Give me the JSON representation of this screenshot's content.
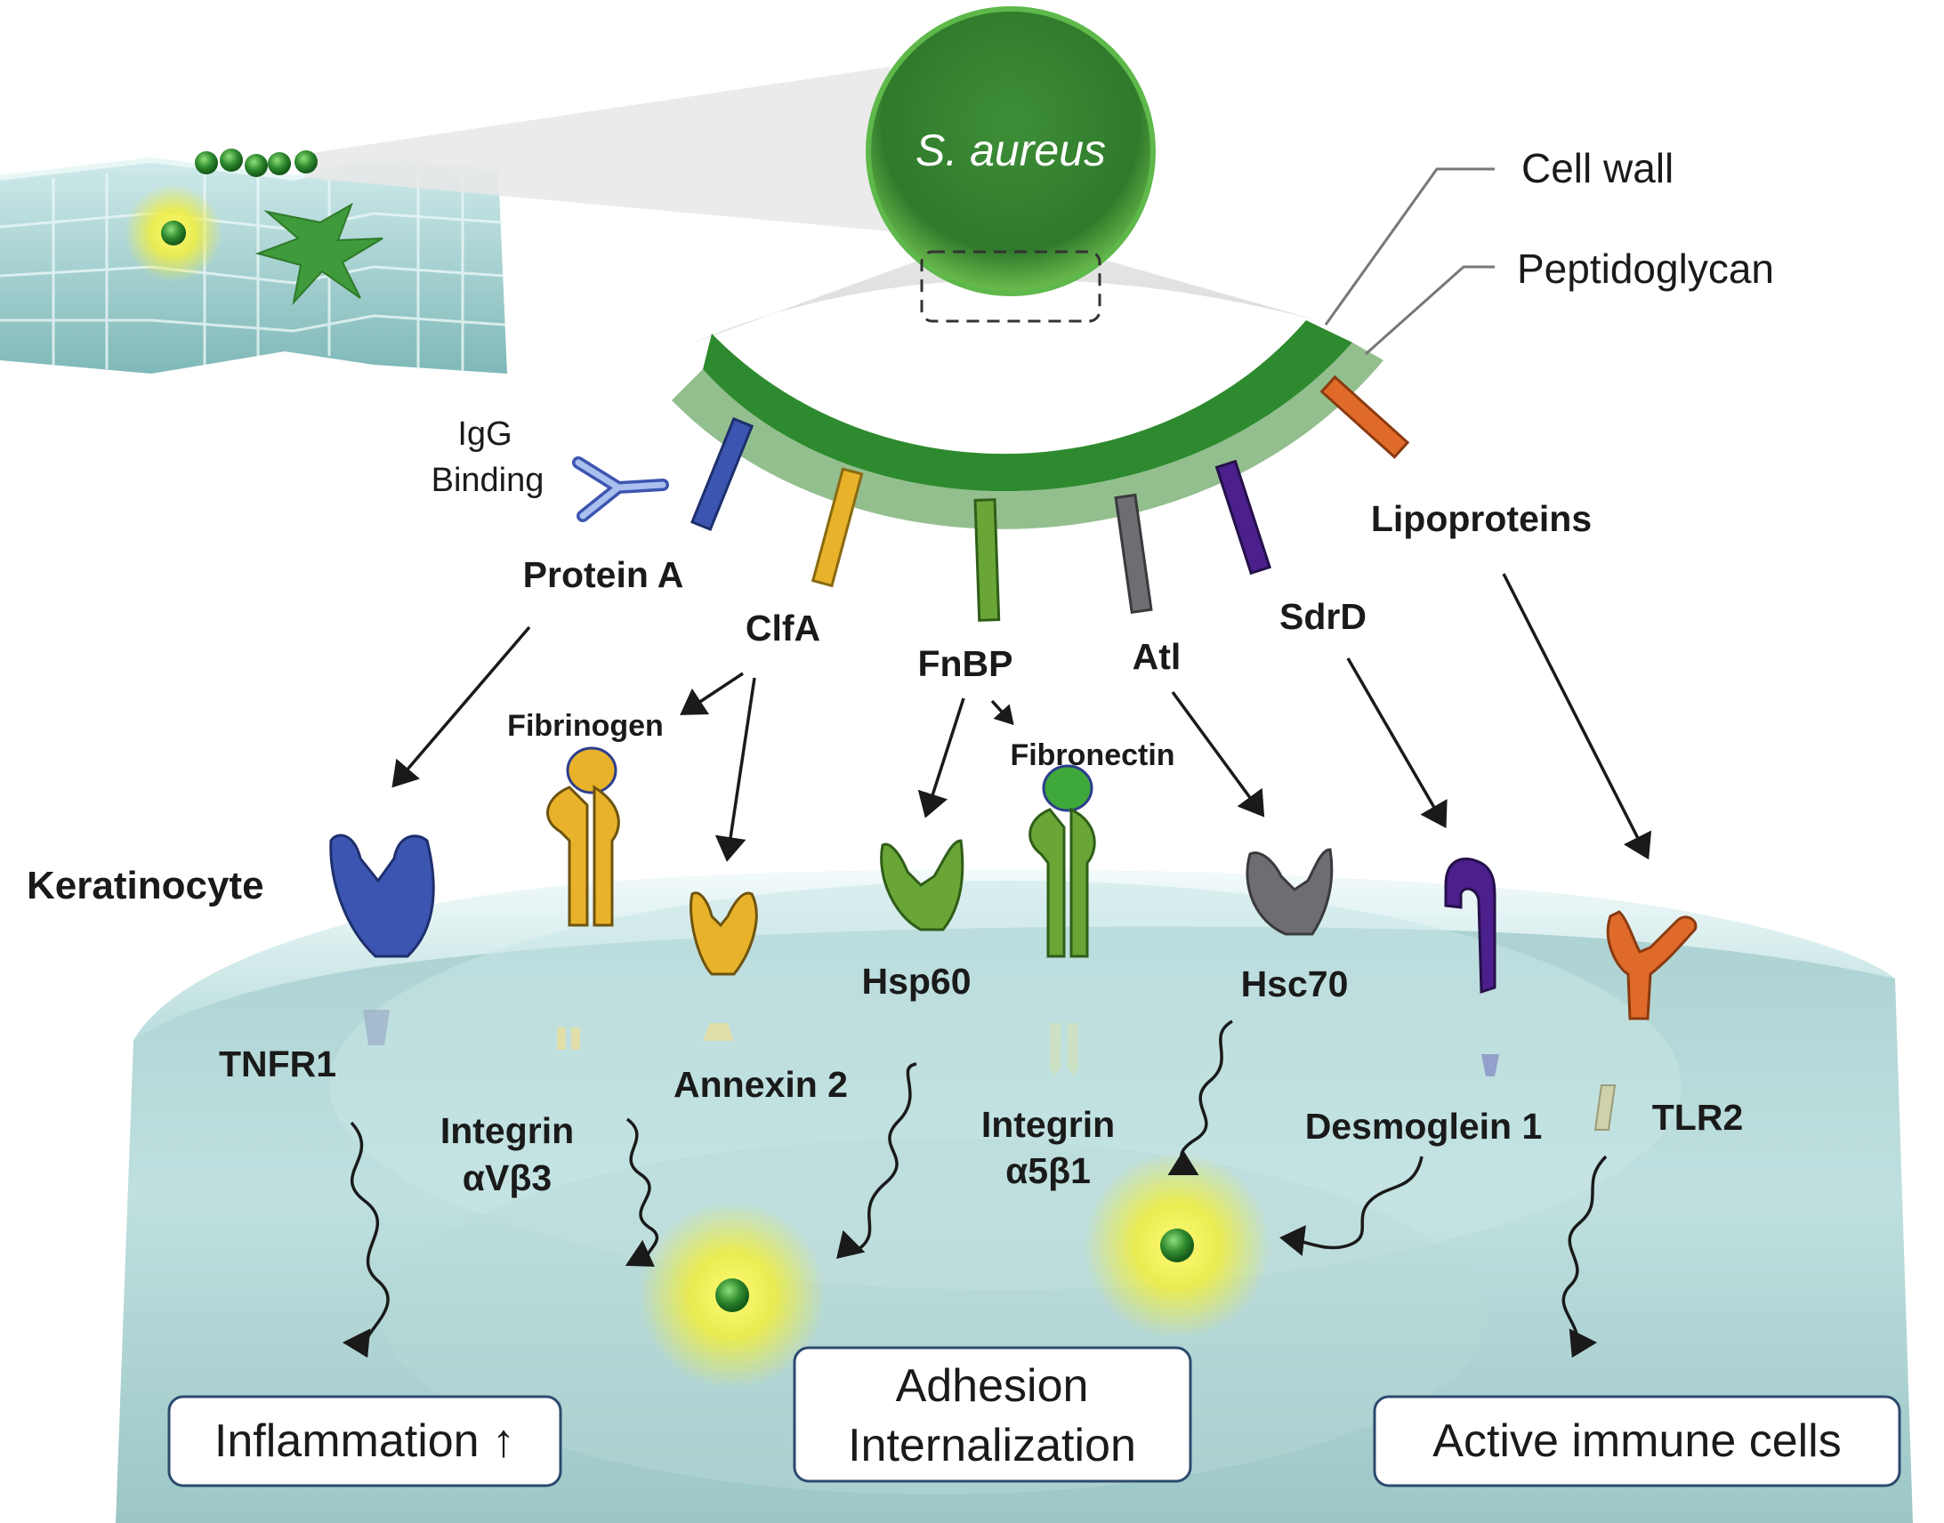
{
  "bacterium": {
    "name": "S. aureus"
  },
  "layers": {
    "cell_wall": "Cell wall",
    "peptidoglycan": "Peptidoglycan"
  },
  "igg": {
    "line1": "IgG",
    "line2": "Binding"
  },
  "bacterial_proteins": {
    "protein_a": "Protein A",
    "clfa": "ClfA",
    "fnbp": "FnBP",
    "atl": "Atl",
    "sdrd": "SdrD",
    "lipoproteins": "Lipoproteins"
  },
  "ligands": {
    "fibrinogen": "Fibrinogen",
    "fibronectin": "Fibronectin"
  },
  "host_cell": "Keratinocyte",
  "receptors": {
    "tnfr1": "TNFR1",
    "integrin_avb3_line1": "Integrin",
    "integrin_avb3_line2": "αVβ3",
    "annexin2": "Annexin 2",
    "hsp60": "Hsp60",
    "integrin_a5b1_line1": "Integrin",
    "integrin_a5b1_line2": "α5β1",
    "hsc70": "Hsc70",
    "desmoglein1": "Desmoglein 1",
    "tlr2": "TLR2"
  },
  "outcomes": {
    "inflammation": "Inflammation ↑",
    "adhesion_line1": "Adhesion",
    "adhesion_line2": "Internalization",
    "immune": "Active immune cells"
  },
  "colors": {
    "protein_a": "#3c55b0",
    "clfa": "#e8b22a",
    "fnbp": "#6aa637",
    "atl": "#6e6e72",
    "sdrd": "#4b1f8c",
    "lipoproteins": "#e06a2a",
    "wall_dark": "#2e8a2e",
    "wall_light": "#93bf8f",
    "bacterium": "#3f9a3a",
    "cell": "#a9d2d1"
  }
}
